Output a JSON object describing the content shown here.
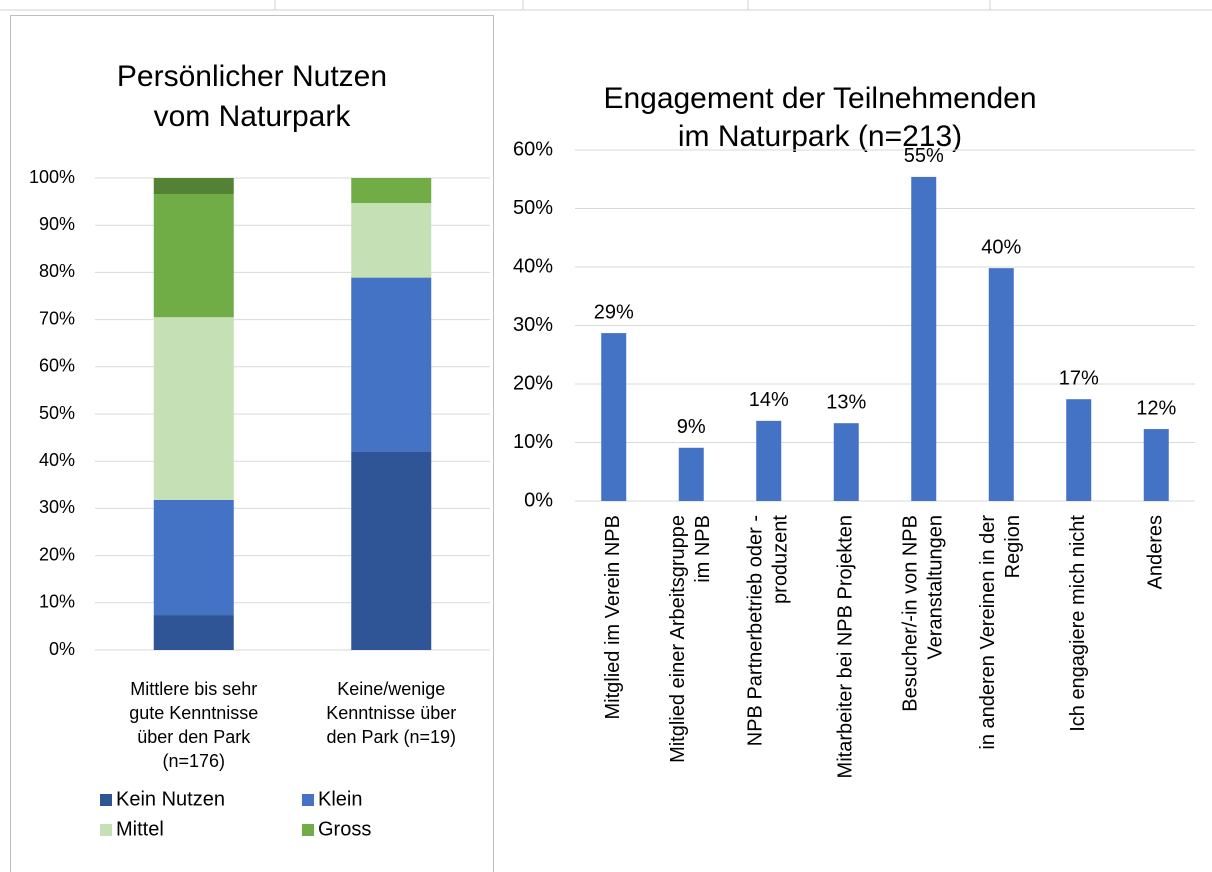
{
  "chart_data": [
    {
      "type": "bar",
      "stacked": true,
      "title": "Persönlicher Nutzen\nvom Naturpark",
      "categories": [
        "Mittlere bis sehr\ngute Kenntnisse\nüber den Park\n(n=176)",
        "Keine/wenige\nKenntnisse über\nden Park (n=19)"
      ],
      "series": [
        {
          "name": "Kein Nutzen",
          "color": "#2f5597",
          "values": [
            7.4,
            42.1
          ]
        },
        {
          "name": "Klein",
          "color": "#4472c4",
          "values": [
            24.4,
            36.8
          ]
        },
        {
          "name": "Mittel",
          "color": "#c5e0b4",
          "values": [
            38.7,
            15.8
          ]
        },
        {
          "name": "Gross",
          "color": "#70ad47",
          "values": [
            26.1,
            5.3
          ]
        },
        {
          "name": null,
          "color": "#548235",
          "values": [
            3.4,
            0
          ]
        }
      ],
      "ylim": [
        0,
        100
      ],
      "yticks": [
        {
          "value": 0,
          "label": "0%"
        },
        {
          "value": 10,
          "label": "10%"
        },
        {
          "value": 20,
          "label": "20%"
        },
        {
          "value": 30,
          "label": "30%"
        },
        {
          "value": 40,
          "label": "40%"
        },
        {
          "value": 50,
          "label": "50%"
        },
        {
          "value": 60,
          "label": "60%"
        },
        {
          "value": 70,
          "label": "70%"
        },
        {
          "value": 80,
          "label": "80%"
        },
        {
          "value": 90,
          "label": "90%"
        },
        {
          "value": 100,
          "label": "100%"
        }
      ],
      "grid": true,
      "legend": "bottom"
    },
    {
      "type": "bar",
      "title": "Engagement der Teilnehmenden\nim Naturpark (n=213)",
      "categories": [
        "Mitglied im Verein NPB",
        "Mitglied einer Arbeitsgruppe\nim NPB",
        "NPB Partnerbetrieb oder -\nproduzent",
        "Mitarbeiter bei NPB Projekten",
        "Besucher/-in von NPB\nVeranstaltungen",
        "in anderen Vereinen in der\nRegion",
        "Ich engagiere mich nicht",
        "Anderes"
      ],
      "values": [
        28.7,
        9.1,
        13.7,
        13.3,
        55.4,
        39.8,
        17.4,
        12.3
      ],
      "value_labels": [
        "29%",
        "9%",
        "14%",
        "13%",
        "55%",
        "40%",
        "17%",
        "12%"
      ],
      "color": "#4472c4",
      "ylim": [
        0,
        60
      ],
      "yticks": [
        {
          "value": 0,
          "label": "0%"
        },
        {
          "value": 10,
          "label": "10%"
        },
        {
          "value": 20,
          "label": "20%"
        },
        {
          "value": 30,
          "label": "30%"
        },
        {
          "value": 40,
          "label": "40%"
        },
        {
          "value": 50,
          "label": "50%"
        },
        {
          "value": 60,
          "label": "60%"
        }
      ],
      "grid": true
    }
  ]
}
